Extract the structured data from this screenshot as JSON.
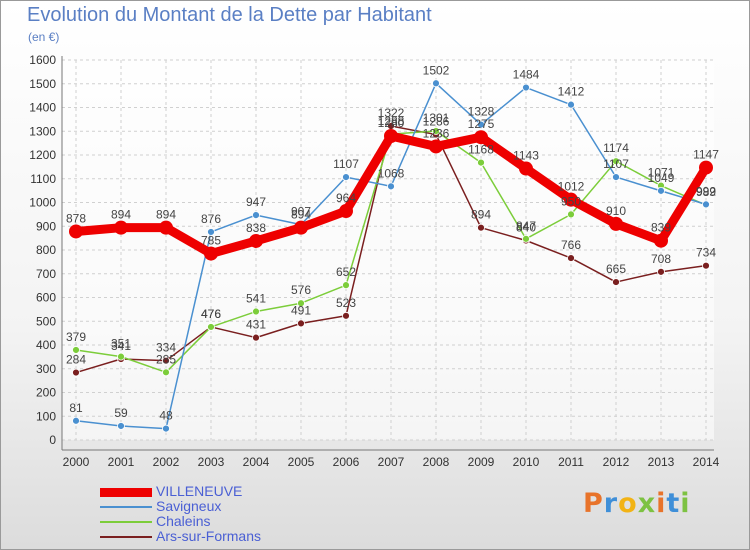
{
  "header": {
    "title": "Evolution du Montant de la Dette par Habitant",
    "subtitle": "(en €)"
  },
  "logo": {
    "text": "Proxiti",
    "colors": [
      "#e8732a",
      "#3f8fd8",
      "#f2b315",
      "#7dc242",
      "#e8732a",
      "#3f8fd8",
      "#7dc242"
    ]
  },
  "chart_data": {
    "type": "line",
    "x": [
      2000,
      2001,
      2002,
      2003,
      2004,
      2005,
      2006,
      2007,
      2008,
      2009,
      2010,
      2011,
      2012,
      2013,
      2014
    ],
    "xlabel": "",
    "ylabel": "",
    "ylim": [
      0,
      1600
    ],
    "yticks": [
      0,
      100,
      200,
      300,
      400,
      500,
      600,
      700,
      800,
      900,
      1000,
      1100,
      1200,
      1300,
      1400,
      1500,
      1600
    ],
    "grid": true,
    "legend": "bottom-left",
    "series": [
      {
        "name": "VILLENEUVE",
        "color": "#ee0000",
        "values": [
          878,
          894,
          894,
          785,
          838,
          894,
          964,
          1280,
          1236,
          1275,
          1143,
          1012,
          910,
          839,
          1147
        ]
      },
      {
        "name": "Savigneux",
        "color": "#4a90d0",
        "values": [
          81,
          59,
          48,
          876,
          947,
          907,
          1107,
          1068,
          1502,
          1328,
          1484,
          1412,
          1107,
          1049,
          992
        ]
      },
      {
        "name": "Chaleins",
        "color": "#7ccd3a",
        "values": [
          379,
          351,
          285,
          476,
          541,
          576,
          652,
          1288,
          1301,
          1168,
          847,
          950,
          1174,
          1071,
          989
        ]
      },
      {
        "name": "Ars-sur-Formans",
        "color": "#7a1f1f",
        "values": [
          284,
          341,
          334,
          476,
          431,
          491,
          523,
          1322,
          1286,
          894,
          840,
          766,
          665,
          708,
          734
        ]
      }
    ]
  }
}
